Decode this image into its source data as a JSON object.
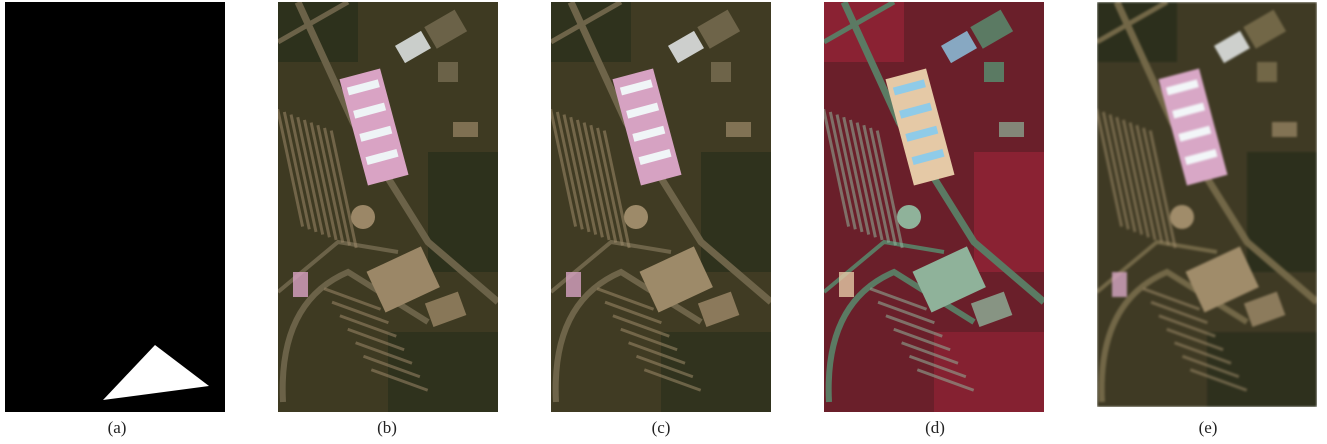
{
  "figure": {
    "panels": [
      {
        "caption": "(a)",
        "kind": "binary-mask",
        "background": "#000000",
        "mask_color": "#ffffff"
      },
      {
        "caption": "(b)",
        "kind": "aerial-true-color",
        "palette": {
          "base": "#3e3a22",
          "veg": "#2d311c",
          "road": "#6b6248",
          "roof": "#9b8767",
          "pink": "#d9a3c4",
          "white": "#eef4f6"
        }
      },
      {
        "caption": "(c)",
        "kind": "aerial-true-color",
        "palette": {
          "base": "#403b23",
          "veg": "#2f321d",
          "road": "#6e6449",
          "roof": "#9d8a69",
          "pink": "#d6a2c2",
          "white": "#f0f5f7"
        }
      },
      {
        "caption": "(d)",
        "kind": "aerial-false-color",
        "palette": {
          "base": "#6a1f2a",
          "veg": "#8a2233",
          "road": "#5b7a63",
          "roof": "#8fb29a",
          "pink": "#e5c9a6",
          "white": "#8fcbe8"
        }
      },
      {
        "caption": "(e)",
        "kind": "aerial-low-resolution",
        "palette": {
          "base": "#3f3a24",
          "veg": "#2c2f1c",
          "road": "#726747",
          "roof": "#a08c6a",
          "pink": "#d8a7c6",
          "white": "#f2f6f8"
        }
      }
    ]
  }
}
